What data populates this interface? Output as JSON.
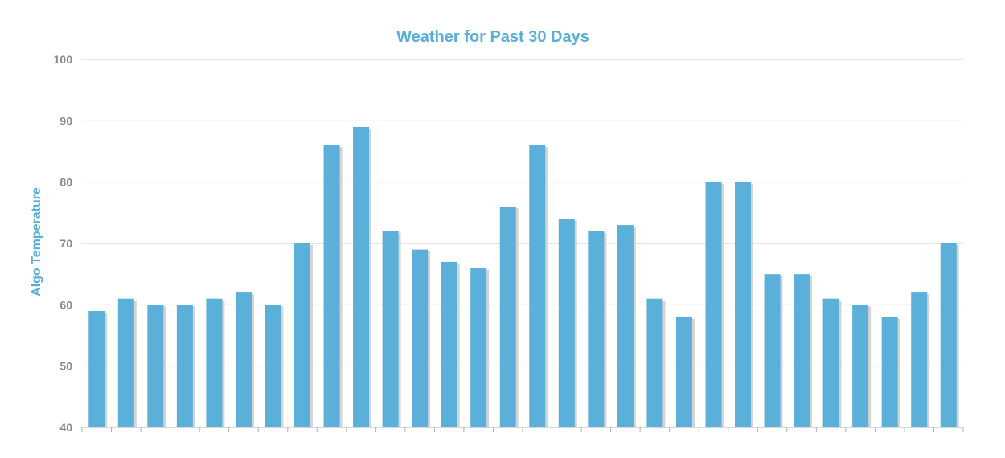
{
  "chart_data": {
    "type": "bar",
    "title": "Weather for Past 30 Days",
    "ylabel": "Algo Temperature",
    "xlabel": "",
    "ylim": [
      40,
      100
    ],
    "yticks": [
      40,
      50,
      60,
      70,
      80,
      90,
      100
    ],
    "grid": true,
    "legend": "none",
    "values": [
      59,
      61,
      60,
      60,
      61,
      62,
      60,
      70,
      86,
      89,
      72,
      69,
      67,
      66,
      76,
      86,
      74,
      72,
      73,
      61,
      58,
      80,
      80,
      65,
      65,
      61,
      60,
      58,
      62,
      70
    ],
    "colors": {
      "bar": "#5ab0d8",
      "bar_shadow": "#d4d4d4",
      "title": "#5aaed6",
      "grid": "#c8c8c8",
      "axis": "#b0b0b0"
    }
  }
}
